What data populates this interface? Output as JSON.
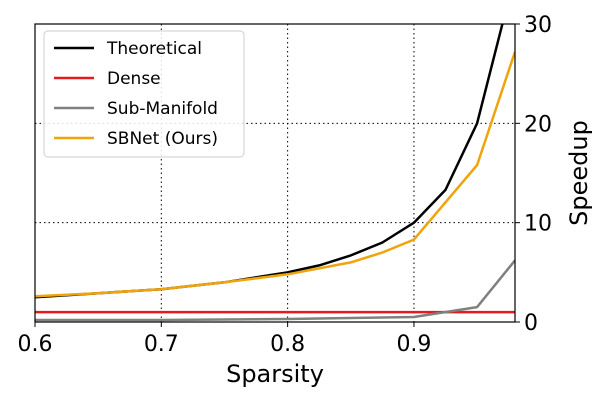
{
  "chart_data": {
    "type": "line",
    "xlabel": "Sparsity",
    "ylabel": "Speedup",
    "xlim": [
      0.6,
      0.98
    ],
    "ylim": [
      0,
      30
    ],
    "x_ticks": [
      0.6,
      0.7,
      0.8,
      0.9
    ],
    "y_ticks": [
      0,
      10,
      20,
      30
    ],
    "x_tick_labels": [
      "0.6",
      "0.7",
      "0.8",
      "0.9"
    ],
    "y_tick_labels": [
      "0",
      "10",
      "20",
      "30"
    ],
    "y_axis_side": "right",
    "grid": "dotted",
    "legend_position": "top-left",
    "series": [
      {
        "name": "Theoretical",
        "color": "#000000",
        "x": [
          0.6,
          0.65,
          0.7,
          0.75,
          0.8,
          0.825,
          0.85,
          0.875,
          0.9,
          0.925,
          0.95,
          0.97
        ],
        "y": [
          2.5,
          2.9,
          3.3,
          4.0,
          5.0,
          5.7,
          6.7,
          8.0,
          10.0,
          13.3,
          20.0,
          30.0
        ]
      },
      {
        "name": "Dense",
        "color": "#e41a1c",
        "x": [
          0.6,
          0.98
        ],
        "y": [
          1.0,
          1.0
        ]
      },
      {
        "name": "Sub-Manifold",
        "color": "#808080",
        "x": [
          0.6,
          0.7,
          0.8,
          0.9,
          0.95,
          0.98
        ],
        "y": [
          0.2,
          0.2,
          0.3,
          0.5,
          1.5,
          6.2
        ]
      },
      {
        "name": "SBNet (Ours)",
        "color": "#f0a30a",
        "x": [
          0.6,
          0.65,
          0.7,
          0.75,
          0.8,
          0.85,
          0.875,
          0.9,
          0.95,
          0.98
        ],
        "y": [
          2.6,
          2.9,
          3.3,
          4.0,
          4.8,
          6.0,
          7.0,
          8.3,
          15.8,
          27.2
        ]
      }
    ]
  }
}
